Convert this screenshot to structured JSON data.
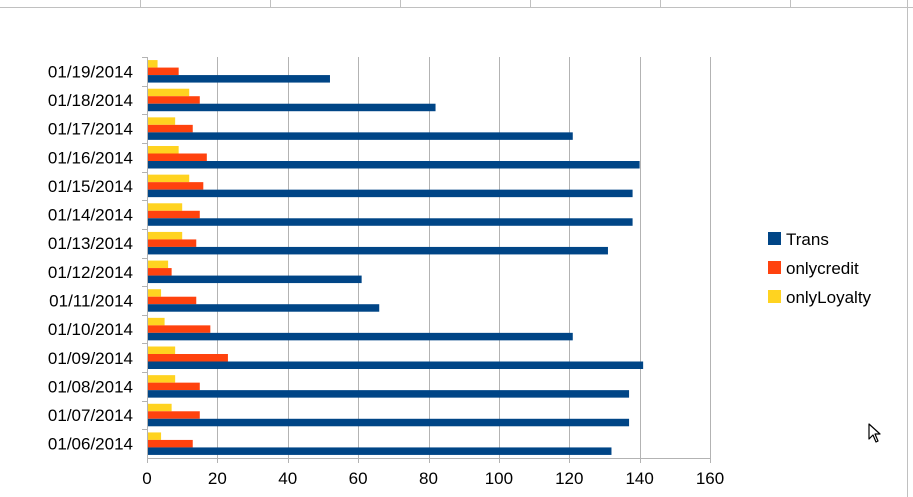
{
  "chart_data": {
    "type": "bar",
    "orientation": "horizontal",
    "categories": [
      "01/19/2014",
      "01/18/2014",
      "01/17/2014",
      "01/16/2014",
      "01/15/2014",
      "01/14/2014",
      "01/13/2014",
      "01/12/2014",
      "01/11/2014",
      "01/10/2014",
      "01/09/2014",
      "01/08/2014",
      "01/07/2014",
      "01/06/2014"
    ],
    "series": [
      {
        "name": "Trans",
        "color": "#004586",
        "values": [
          52,
          82,
          121,
          140,
          138,
          138,
          131,
          61,
          66,
          121,
          141,
          137,
          137,
          132
        ]
      },
      {
        "name": "onlycredit",
        "color": "#ff420e",
        "values": [
          9,
          15,
          13,
          17,
          16,
          15,
          14,
          7,
          14,
          18,
          23,
          15,
          15,
          13
        ]
      },
      {
        "name": "onlyLoyalty",
        "color": "#ffd320",
        "values": [
          3,
          12,
          8,
          9,
          12,
          10,
          10,
          6,
          4,
          5,
          8,
          8,
          7,
          4
        ]
      }
    ],
    "xlim": [
      0,
      160
    ],
    "xticks": [
      0,
      20,
      40,
      60,
      80,
      100,
      120,
      140,
      160
    ],
    "grid": "vertical",
    "legend_position": "right"
  }
}
